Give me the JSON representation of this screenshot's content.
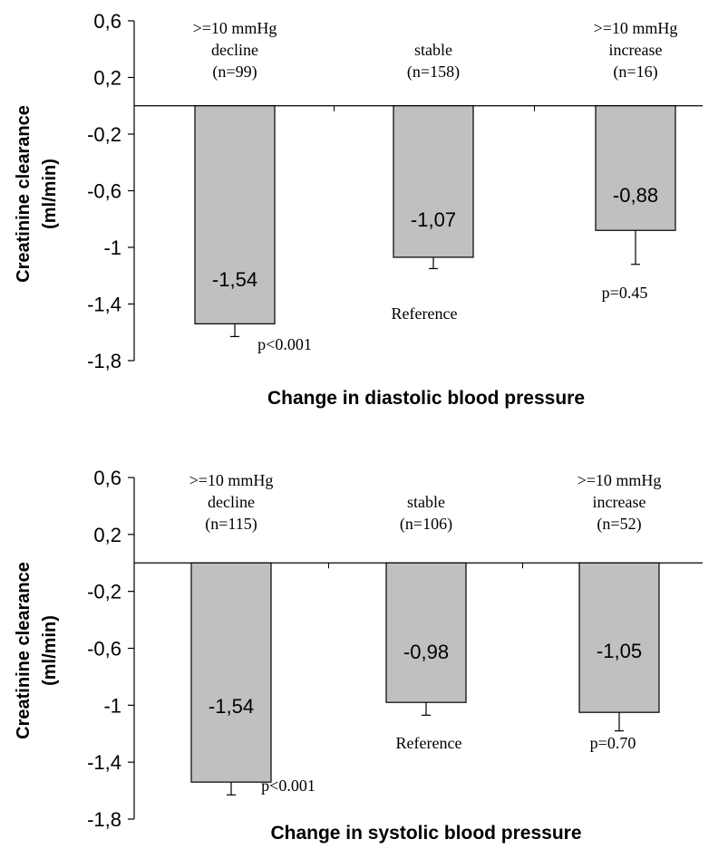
{
  "chart_data": [
    {
      "type": "bar",
      "title": "",
      "xlabel": "Change in diastolic blood pressure",
      "ylabel": [
        "Creatinine clearance",
        "(ml/min)"
      ],
      "ylim": [
        -1.8,
        0.6
      ],
      "yticks": [
        "0,6",
        "0,2",
        "-0,2",
        "-0,6",
        "-1",
        "-1,4",
        "-1,8"
      ],
      "categories": [
        [
          "&gt;=10 mmHg",
          "decline",
          "(n=99)"
        ],
        [
          "stable",
          "(n=158)"
        ],
        [
          "&gt;=10 mmHg",
          "increase",
          "(n=16)"
        ]
      ],
      "values": [
        -1.54,
        -1.07,
        -0.88
      ],
      "value_labels": [
        "-1,54",
        "-1,07",
        "-0,88"
      ],
      "error_bar_ends": [
        -1.63,
        -1.15,
        -1.12
      ],
      "annotations": [
        "p<0.001",
        "Reference",
        "p=0.45"
      ],
      "bar_color": "#c0c0c0",
      "grid": false
    },
    {
      "type": "bar",
      "title": "",
      "xlabel": "Change in systolic blood pressure",
      "ylabel": [
        "Creatinine clearance",
        "(ml/min)"
      ],
      "ylim": [
        -1.8,
        0.6
      ],
      "yticks": [
        "0,6",
        "0,2",
        "-0,2",
        "-0,6",
        "-1",
        "-1,4",
        "-1,8"
      ],
      "categories": [
        [
          "&gt;=10 mmHg",
          "decline",
          "(n=115)"
        ],
        [
          "stable",
          "(n=106)"
        ],
        [
          "&gt;=10 mmHg",
          "increase",
          "(n=52)"
        ]
      ],
      "values": [
        -1.54,
        -0.98,
        -1.05
      ],
      "value_labels": [
        "-1,54",
        "-0,98",
        "-1,05"
      ],
      "error_bar_ends": [
        -1.63,
        -1.07,
        -1.18
      ],
      "annotations": [
        "p<0.001",
        "Reference",
        "p=0.70"
      ],
      "bar_color": "#c0c0c0",
      "grid": false
    }
  ]
}
